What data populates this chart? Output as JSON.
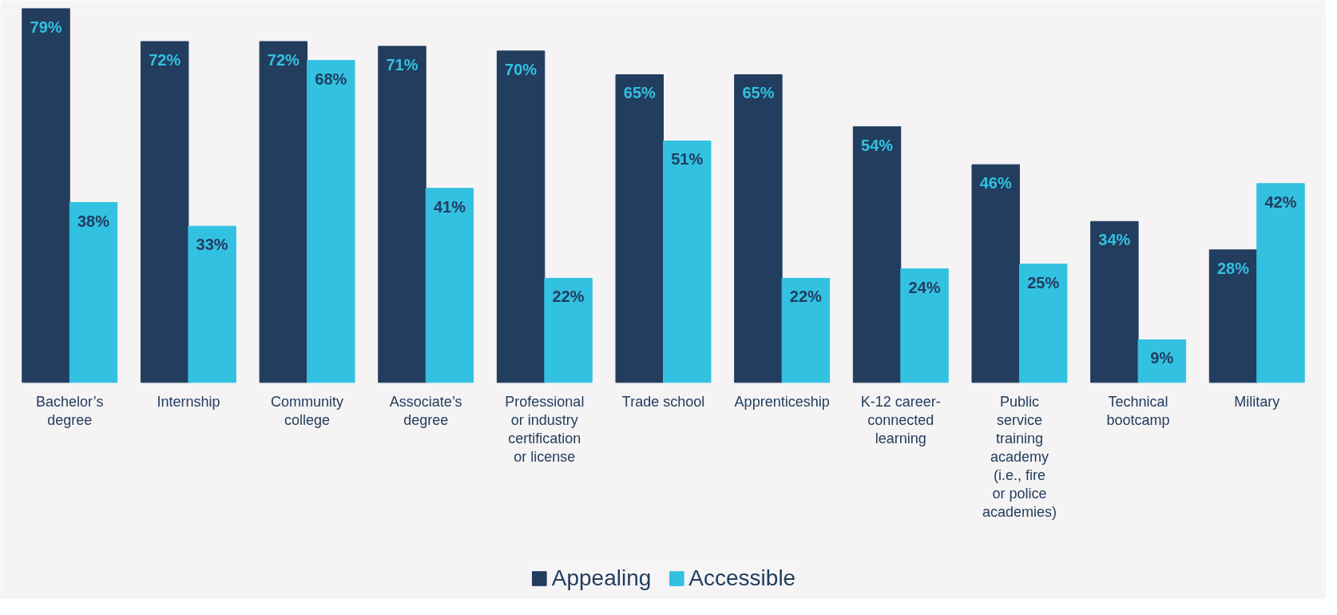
{
  "chart_data": {
    "type": "bar",
    "categories": [
      "Bachelor’s degree",
      "Internship",
      "Community college",
      "Associate’s degree",
      "Professional or industry certification or license",
      "Trade school",
      "Apprenticeship",
      "K-12 career-connected learning",
      "Public service training academy (i.e., fire or police academies)",
      "Technical bootcamp",
      "Military"
    ],
    "series": [
      {
        "name": "Appealing",
        "color": "#223d5e",
        "values": [
          79,
          72,
          72,
          71,
          70,
          65,
          65,
          54,
          46,
          34,
          28
        ],
        "value_labels": [
          "79%",
          "72%",
          "72%",
          "71%",
          "70%",
          "65%",
          "65%",
          "54%",
          "46%",
          "34%",
          "28%"
        ]
      },
      {
        "name": "Accessible",
        "color": "#33c1e2",
        "values": [
          38,
          33,
          68,
          41,
          22,
          51,
          22,
          24,
          25,
          9,
          42
        ],
        "value_labels": [
          "38%",
          "33%",
          "68%",
          "41%",
          "22%",
          "51%",
          "22%",
          "24%",
          "25%",
          "9%",
          "42%"
        ]
      }
    ],
    "grid": false,
    "legend": "bottom"
  }
}
